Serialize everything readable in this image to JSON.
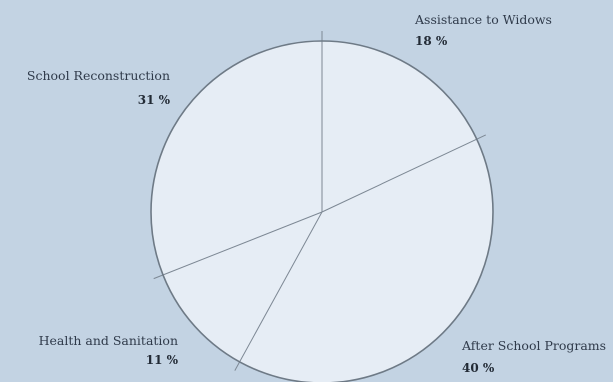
{
  "chart_data": {
    "type": "pie",
    "title": "",
    "slices": [
      {
        "label": "Assistance to Widows",
        "value": 18,
        "display": "18 %"
      },
      {
        "label": "After School Programs",
        "value": 40,
        "display": "40 %"
      },
      {
        "label": "Health and Sanitation",
        "value": 11,
        "display": "11 %"
      },
      {
        "label": "School Reconstruction",
        "value": 31,
        "display": "31 %"
      }
    ],
    "colors": {
      "background": "#c3d3e3",
      "slice_fill": "#e6edf5",
      "outline": "#6e7a86",
      "divider": "#7d8894"
    }
  }
}
